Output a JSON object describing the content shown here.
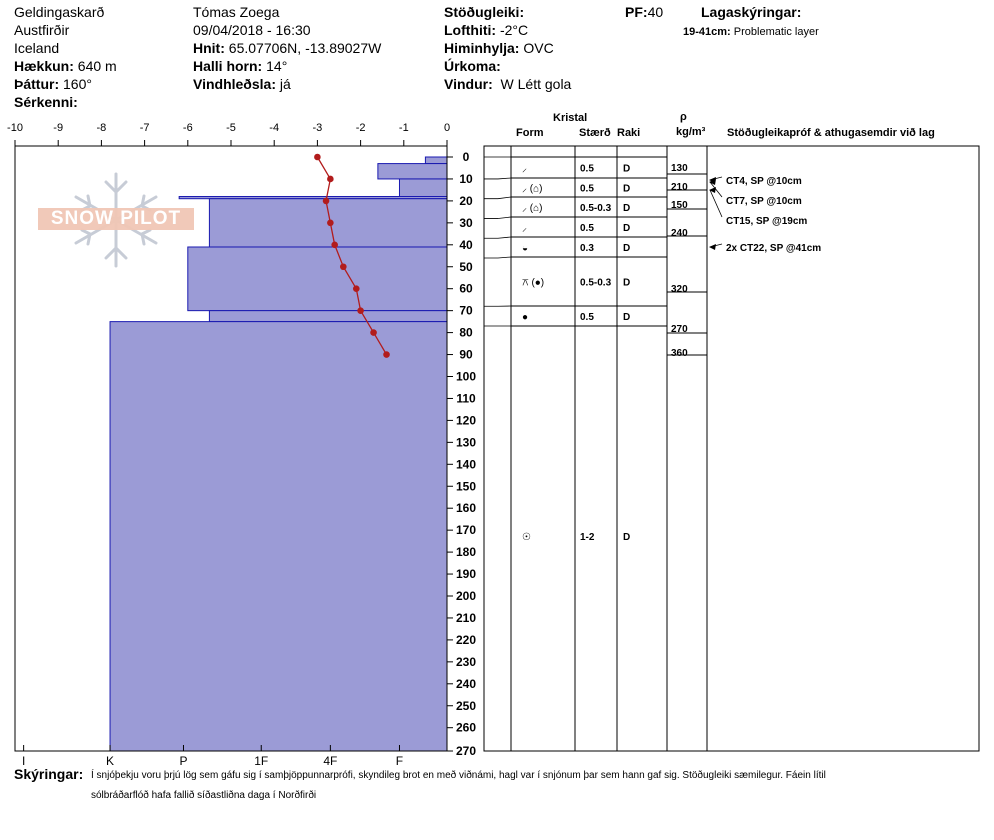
{
  "header": {
    "location": "Geldingaskarð",
    "region": "Austfirðir",
    "country": "Iceland",
    "elevation_label": "Hækkun:",
    "elevation_value": "640 m",
    "aspect_label": "Þáttur:",
    "aspect_value": "160°",
    "features_label": "Sérkenni:",
    "observer": "Tómas Zoega",
    "datetime": "09/04/2018 - 16:30",
    "coords_label": "Hnit:",
    "coords_value": "65.07706N, -13.89027W",
    "slope_label": "Halli horn:",
    "slope_value": "14°",
    "wind_loading_label": "Vindhleðsla:",
    "wind_loading_value": "já",
    "stability_label": "Stöðugleiki:",
    "air_temp_label": "Lofthiti:",
    "air_temp_value": "-2°C",
    "sky_label": "Himinhylja:",
    "sky_value": "OVC",
    "precip_label": "Úrkoma:",
    "wind_label": "Vindur:",
    "wind_value": "W Létt gola",
    "pf_label": "PF:",
    "pf_value": "40",
    "layer_notes_label": "Lagaskýringar:",
    "layer_notes_range": "19-41cm:",
    "layer_notes_text": "Problematic layer",
    "logo_text": "SNOW PILOT"
  },
  "columns": {
    "crystal": "Kristal",
    "form": "Form",
    "size": "Stærð",
    "moisture": "Raki",
    "density_symbol": "ρ",
    "density_unit": "kg/m³",
    "stability_tests": "Stöðugleikapróf & athugasemdir við lag"
  },
  "footer": {
    "label": "Skýringar:",
    "line1": "Í snjóþekju voru þrjú lög sem gáfu sig í samþjöppunnarprófi, skyndileg brot en með viðnámi, hagl var í snjónum þar sem hann gaf sig. Stöðugleiki sæmilegur. Fáein lítil",
    "line2": "sólbráðarflóð hafa fallið síðastliðna daga í Norðfirði"
  },
  "chart_data": {
    "type": "snow-profile",
    "temperature_axis": {
      "ticks": [
        "-10",
        "-9",
        "-8",
        "-7",
        "-6",
        "-5",
        "-4",
        "-3",
        "-2",
        "-1",
        "0"
      ],
      "range": [
        -10,
        0
      ]
    },
    "depth_axis": {
      "range": [
        0,
        270
      ],
      "ticks": [
        "0",
        "10",
        "20",
        "30",
        "40",
        "50",
        "60",
        "70",
        "80",
        "90",
        "100",
        "110",
        "120",
        "130",
        "140",
        "150",
        "160",
        "170",
        "180",
        "190",
        "200",
        "210",
        "220",
        "230",
        "240",
        "250",
        "260",
        "270"
      ]
    },
    "hardness_labels": [
      "I",
      "K",
      "P",
      "1F",
      "4F",
      "F"
    ],
    "hardness_profile": [
      {
        "top": 0,
        "bottom": 3,
        "hardness": -0.5
      },
      {
        "top": 3,
        "bottom": 10,
        "hardness": -1.6
      },
      {
        "top": 10,
        "bottom": 18,
        "hardness": -1.1
      },
      {
        "top": 18,
        "bottom": 19,
        "hardness": -6.2
      },
      {
        "top": 19,
        "bottom": 41,
        "hardness": -5.5
      },
      {
        "top": 41,
        "bottom": 70,
        "hardness": -6.0
      },
      {
        "top": 70,
        "bottom": 75,
        "hardness": -5.5
      },
      {
        "top": 75,
        "bottom": 270,
        "hardness": -7.8
      }
    ],
    "temperature_profile": [
      {
        "depth": 0,
        "temp": -3.0
      },
      {
        "depth": 10,
        "temp": -2.7
      },
      {
        "depth": 20,
        "temp": -2.8
      },
      {
        "depth": 30,
        "temp": -2.7
      },
      {
        "depth": 40,
        "temp": -2.6
      },
      {
        "depth": 50,
        "temp": -2.4
      },
      {
        "depth": 60,
        "temp": -2.1
      },
      {
        "depth": 70,
        "temp": -2.0
      },
      {
        "depth": 80,
        "temp": -1.7
      },
      {
        "depth": 90,
        "temp": -1.4
      }
    ],
    "layers": [
      {
        "top": 0,
        "bottom": 10,
        "form": "⸝",
        "size": "0.5",
        "moisture": "D"
      },
      {
        "top": 10,
        "bottom": 19,
        "form": "⸝ (⌂)",
        "size": "0.5",
        "moisture": "D"
      },
      {
        "top": 19,
        "bottom": 28,
        "form": "⸝ (⌂)",
        "size": "0.5-0.3",
        "moisture": "D"
      },
      {
        "top": 28,
        "bottom": 37,
        "form": "⸝",
        "size": "0.5",
        "moisture": "D"
      },
      {
        "top": 37,
        "bottom": 46,
        "form": "◒",
        "size": "0.3",
        "moisture": "D"
      },
      {
        "top": 46,
        "bottom": 68,
        "form": "⚻ (●)",
        "size": "0.5-0.3",
        "moisture": "D"
      },
      {
        "top": 68,
        "bottom": 77,
        "form": "●",
        "size": "0.5",
        "moisture": "D"
      },
      {
        "top": 77,
        "bottom": 270,
        "form": "☉",
        "size": "1-2",
        "moisture": "D"
      }
    ],
    "densities": [
      "130",
      "210",
      "150",
      "240",
      "320",
      "270",
      "360"
    ],
    "stability_tests": [
      "CT4, SP @10cm",
      "CT7, SP @10cm",
      "CT15, SP @19cm",
      "2x CT22, SP @41cm"
    ]
  }
}
